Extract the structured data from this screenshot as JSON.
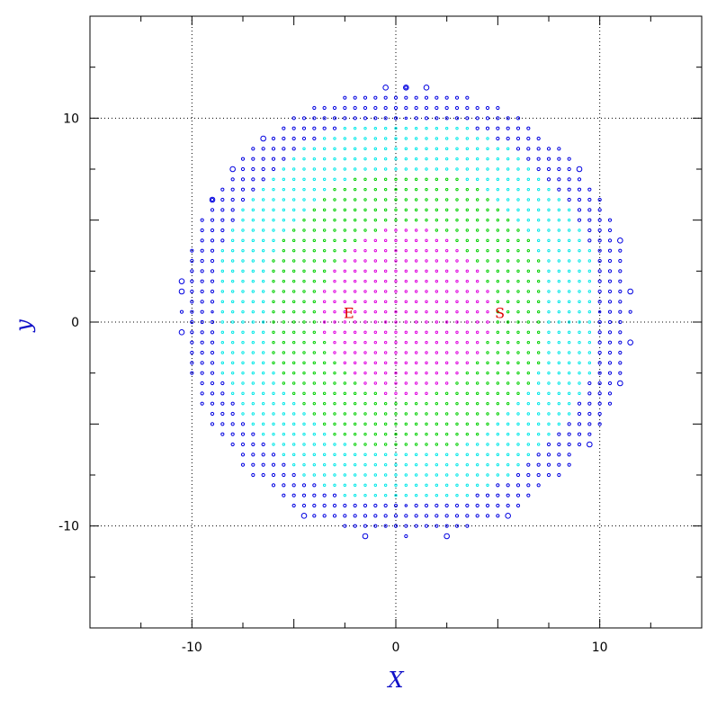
{
  "chart_data": {
    "type": "scatter",
    "title": "",
    "xlabel": "X",
    "ylabel": "y",
    "xlim": [
      -15,
      15
    ],
    "ylim": [
      -15,
      15
    ],
    "xticks_labeled": [
      -10,
      0,
      10
    ],
    "yticks_labeled": [
      -10,
      0,
      10
    ],
    "xtick_labels": [
      "-10",
      "0",
      "10"
    ],
    "ytick_labels": [
      "-10",
      "0",
      "10"
    ],
    "reference_lines_dotted": {
      "x": [
        -10,
        0,
        10
      ],
      "y": [
        -10,
        0,
        10
      ]
    },
    "grid_step": 0.5,
    "point_region": {
      "shape": "disc",
      "center": [
        0.5,
        0.5
      ],
      "radius": 11
    },
    "series": [
      {
        "color": "#e000e0",
        "r_min": 0,
        "r_max": 4.2
      },
      {
        "color": "#00d000",
        "r_min": 4.2,
        "r_max": 7
      },
      {
        "color": "#00e8e8",
        "r_min": 7,
        "r_max": 9.5
      },
      {
        "color": "#0000e0",
        "r_min": 9.5,
        "r_max": 11
      }
    ],
    "outlier_points": [
      [
        -0.5,
        11.5
      ],
      [
        0.5,
        11.5
      ],
      [
        1.5,
        11.5
      ],
      [
        -6.5,
        9
      ],
      [
        -8,
        7.5
      ],
      [
        -9,
        6
      ],
      [
        -10.5,
        2
      ],
      [
        -10.5,
        1.5
      ],
      [
        -10.5,
        -0.5
      ],
      [
        9,
        7.5
      ],
      [
        11,
        4
      ],
      [
        11.5,
        1.5
      ],
      [
        11.5,
        -1
      ],
      [
        11,
        -3
      ],
      [
        9.5,
        -6
      ],
      [
        -4.5,
        -9.5
      ],
      [
        5.5,
        -9.5
      ],
      [
        -1.5,
        -10.5
      ],
      [
        2.5,
        -10.5
      ]
    ],
    "annotations": [
      {
        "text": "E",
        "x": -2.3,
        "y": 0.2,
        "color": "#e00000"
      },
      {
        "text": "S",
        "x": 5.1,
        "y": 0.2,
        "color": "#e00000"
      }
    ],
    "axis_title_color": "#1010c8",
    "grid": false
  }
}
